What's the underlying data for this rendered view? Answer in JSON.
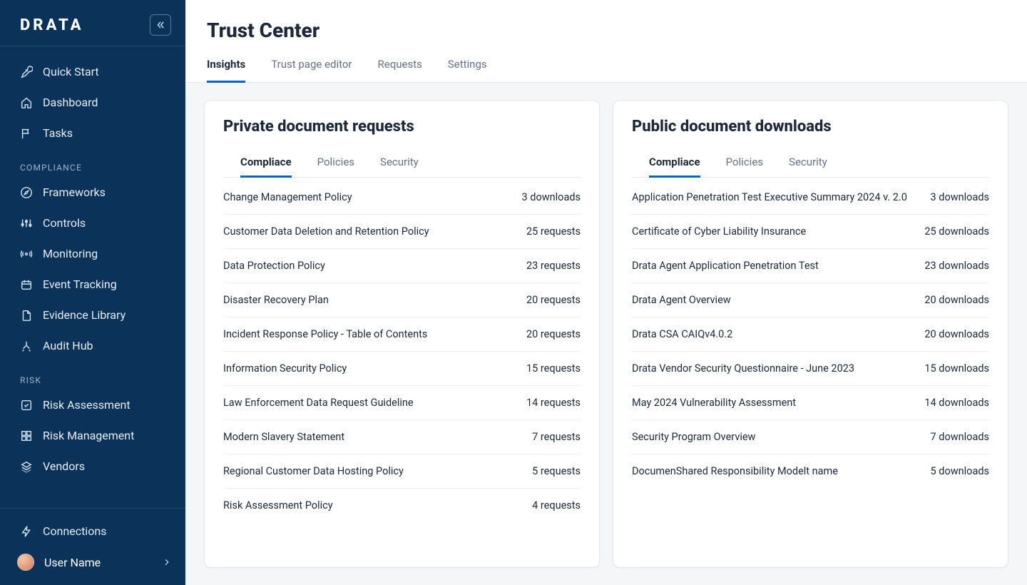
{
  "brand": {
    "logo": "DRATA"
  },
  "sidebar": {
    "items_top": [
      {
        "label": "Quick Start",
        "icon": "rocket"
      },
      {
        "label": "Dashboard",
        "icon": "home"
      },
      {
        "label": "Tasks",
        "icon": "flag"
      }
    ],
    "section_compliance": "COMPLIANCE",
    "items_compliance": [
      {
        "label": "Frameworks",
        "icon": "compass"
      },
      {
        "label": "Controls",
        "icon": "sliders"
      },
      {
        "label": "Monitoring",
        "icon": "broadcast"
      },
      {
        "label": "Event Tracking",
        "icon": "calendar"
      },
      {
        "label": "Evidence Library",
        "icon": "file"
      },
      {
        "label": "Audit Hub",
        "icon": "merge"
      }
    ],
    "section_risk": "RISK",
    "items_risk": [
      {
        "label": "Risk Assessment",
        "icon": "check-sq"
      },
      {
        "label": "Risk Management",
        "icon": "grid"
      },
      {
        "label": "Vendors",
        "icon": "layers"
      }
    ],
    "items_footer": [
      {
        "label": "Connections",
        "icon": "bolt"
      }
    ],
    "user": {
      "name": "User Name"
    }
  },
  "page": {
    "title": "Trust Center"
  },
  "tabs": [
    {
      "label": "Insights",
      "active": true
    },
    {
      "label": "Trust page editor",
      "active": false
    },
    {
      "label": "Requests",
      "active": false
    },
    {
      "label": "Settings",
      "active": false
    }
  ],
  "cards": {
    "private": {
      "title": "Private document requests",
      "subtabs": [
        {
          "label": "Compliace",
          "active": true
        },
        {
          "label": "Policies",
          "active": false
        },
        {
          "label": "Security",
          "active": false
        }
      ],
      "rows": [
        {
          "name": "Change Management Policy",
          "count": "3 downloads"
        },
        {
          "name": "Customer Data Deletion and Retention Policy",
          "count": "25 requests"
        },
        {
          "name": "Data Protection Policy",
          "count": "23 requests"
        },
        {
          "name": "Disaster Recovery Plan",
          "count": "20 requests"
        },
        {
          "name": "Incident Response Policy - Table of Contents",
          "count": "20 requests"
        },
        {
          "name": "Information Security Policy",
          "count": "15 requests"
        },
        {
          "name": "Law Enforcement Data Request Guideline",
          "count": "14 requests"
        },
        {
          "name": "Modern Slavery Statement",
          "count": "7 requests"
        },
        {
          "name": "Regional Customer Data Hosting Policy",
          "count": "5 requests"
        },
        {
          "name": "Risk Assessment Policy",
          "count": "4 requests"
        }
      ]
    },
    "public": {
      "title": "Public document downloads",
      "subtabs": [
        {
          "label": "Compliace",
          "active": true
        },
        {
          "label": "Policies",
          "active": false
        },
        {
          "label": "Security",
          "active": false
        }
      ],
      "rows": [
        {
          "name": "Application Penetration Test Executive Summary 2024 v. 2.0",
          "count": "3 downloads"
        },
        {
          "name": "Certificate of Cyber Liability Insurance",
          "count": "25 downloads"
        },
        {
          "name": "Drata Agent Application Penetration Test",
          "count": "23 downloads"
        },
        {
          "name": "Drata Agent Overview",
          "count": "20 downloads"
        },
        {
          "name": "Drata CSA CAIQv4.0.2",
          "count": "20 downloads"
        },
        {
          "name": "Drata Vendor Security Questionnaire - June 2023",
          "count": "15 downloads"
        },
        {
          "name": "May 2024 Vulnerability Assessment",
          "count": "14 downloads"
        },
        {
          "name": "Security Program Overview",
          "count": "7 downloads"
        },
        {
          "name": "DocumenShared Responsibility Modelt name",
          "count": "5 downloads"
        }
      ]
    }
  }
}
